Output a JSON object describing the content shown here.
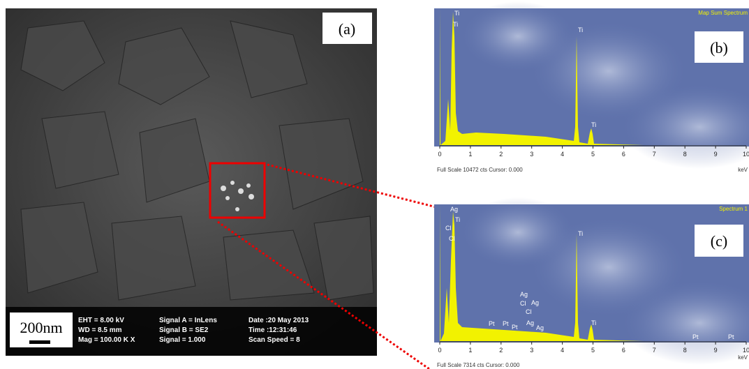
{
  "panel_a": {
    "label": "(a)",
    "scale_bar": "200nm",
    "info": [
      [
        "EHT = 8.00 kV",
        "WD = 8.5 mm",
        "Mag = 100.00 K X"
      ],
      [
        "Signal A = InLens",
        "Signal B = SE2",
        "Signal = 1.000"
      ],
      [
        "Date :20 May 2013",
        "Time :12:31:46",
        "Scan Speed = 8"
      ]
    ]
  },
  "panel_b": {
    "label": "(b)",
    "title": "Map Sum Spectrum",
    "x_ticks": [
      "0",
      "1",
      "2",
      "3",
      "4",
      "5",
      "6",
      "7",
      "8",
      "9",
      "10"
    ],
    "unit": "keV",
    "footer": "Full Scale 10472 cts Cursor: 0.000",
    "peak_labels": [
      "Ti",
      "Ti",
      "Ti",
      "Ti"
    ]
  },
  "panel_c": {
    "label": "(c)",
    "title": "Spectrum 1",
    "x_ticks": [
      "0",
      "1",
      "2",
      "3",
      "4",
      "5",
      "6",
      "7",
      "8",
      "9",
      "10"
    ],
    "unit": "keV",
    "footer": "Full Scale 7314 cts Cursor: 0.000",
    "peak_labels": [
      "Ag",
      "Cl",
      "Ti",
      "Cl",
      "Ti",
      "Ti",
      "Ag",
      "Cl",
      "Ag",
      "Cl",
      "Ag",
      "Ag",
      "Pt",
      "Pt",
      "Pt",
      "Pt",
      "Pt"
    ]
  }
}
